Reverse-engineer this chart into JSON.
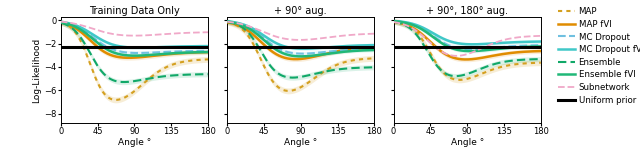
{
  "panels": [
    {
      "title": "Training Data Only"
    },
    {
      "title": "+ 90° aug."
    },
    {
      "title": "+ 90°, 180° aug."
    }
  ],
  "xlabel": "Angle °",
  "ylabel": "Log-Likelihood",
  "xticks": [
    0,
    45,
    90,
    135,
    180
  ],
  "ylim": [
    -8.8,
    0.3
  ],
  "yticks": [
    0,
    -2,
    -4,
    -6,
    -8
  ],
  "uniform_prior_y": -2.3,
  "angles_n": 200
}
